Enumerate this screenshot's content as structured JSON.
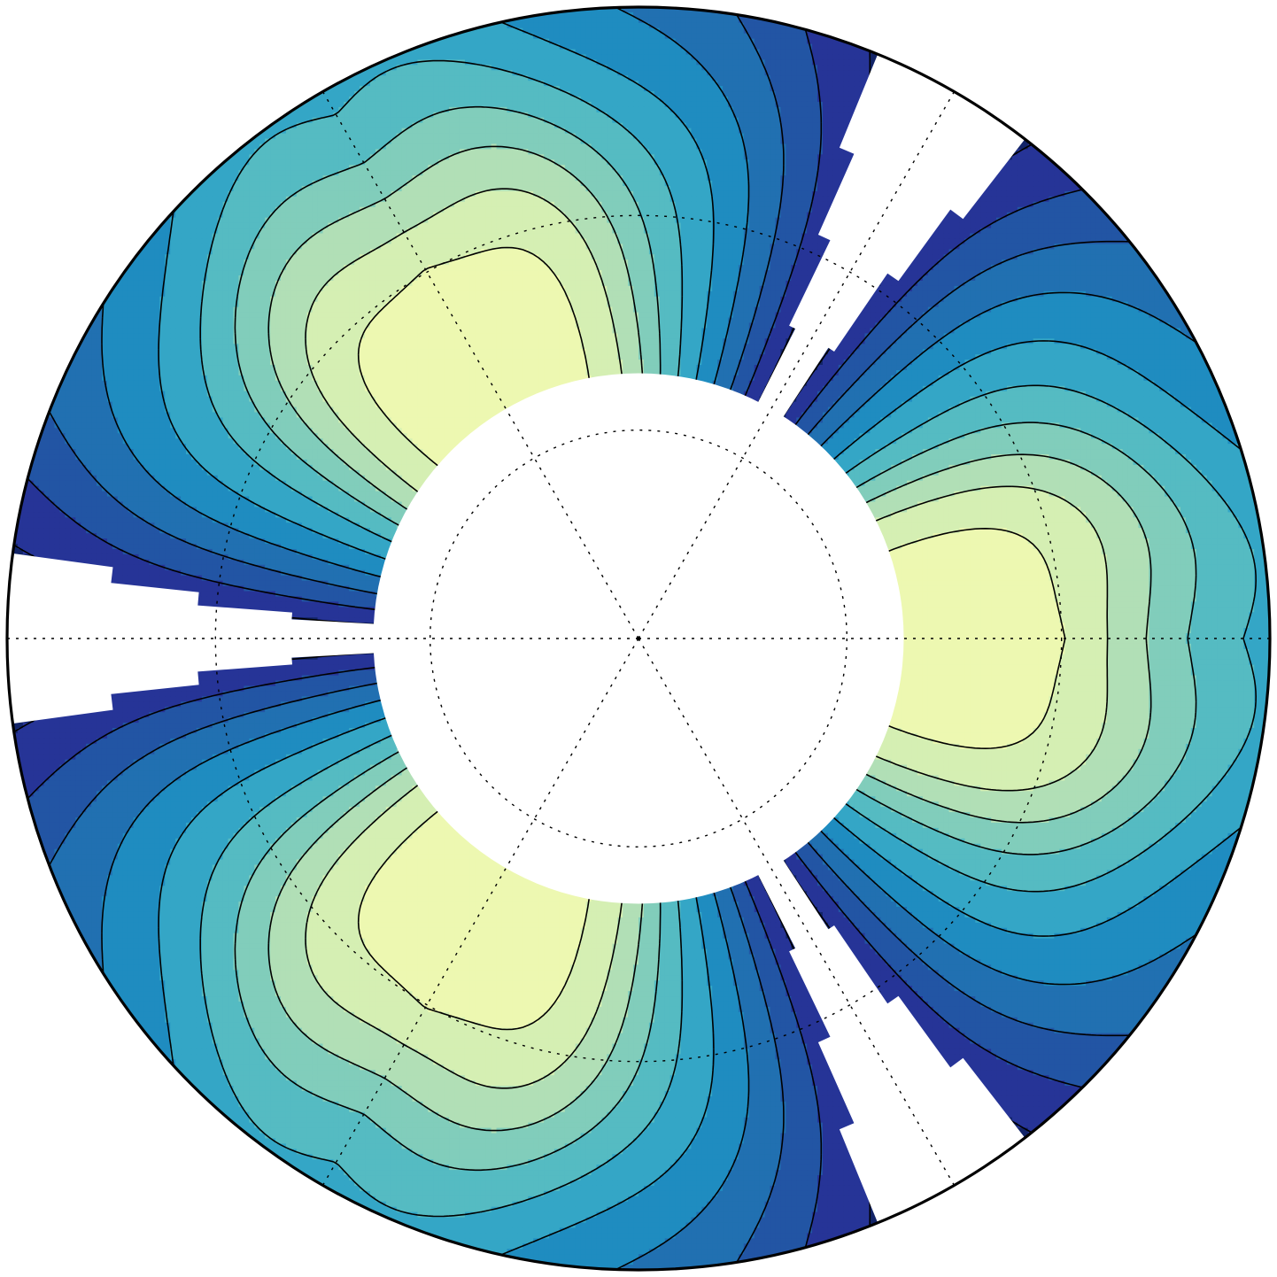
{
  "chart_data": {
    "type": "polar-contour",
    "title": "",
    "lobes_deg": [
      0,
      120,
      240
    ],
    "gaps_deg": [
      60,
      180,
      300
    ],
    "radial_grid": [
      0.33,
      0.67
    ],
    "angular_grid_deg": [
      0,
      60,
      120,
      180,
      240,
      300
    ],
    "r_inner": 0.42,
    "r_outer": 1.0,
    "levels": [
      {
        "level": 1,
        "color": "#122468"
      },
      {
        "level": 2,
        "color": "#263497"
      },
      {
        "level": 3,
        "color": "#2255a4"
      },
      {
        "level": 4,
        "color": "#2170b1"
      },
      {
        "level": 5,
        "color": "#1f8cc0"
      },
      {
        "level": 6,
        "color": "#34a6c6"
      },
      {
        "level": 7,
        "color": "#55bbc2"
      },
      {
        "level": 8,
        "color": "#81cdbb"
      },
      {
        "level": 9,
        "color": "#b1dfb6"
      },
      {
        "level": 10,
        "color": "#d5efb3"
      },
      {
        "level": 11,
        "color": "#edf8b1"
      }
    ]
  }
}
